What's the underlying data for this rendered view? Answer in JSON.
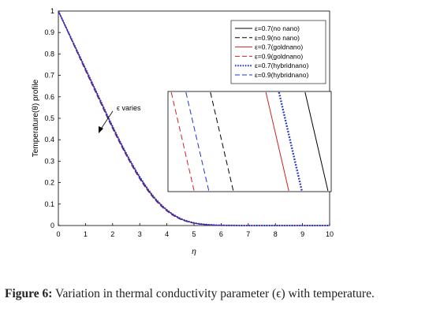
{
  "chart_data": {
    "type": "line",
    "xlabel": "η",
    "ylabel": "Temperature(θ) profile",
    "xlim": [
      0,
      10
    ],
    "ylim": [
      0,
      1
    ],
    "x_ticks": [
      "0",
      "1",
      "2",
      "3",
      "4",
      "5",
      "6",
      "7",
      "8",
      "9",
      "10"
    ],
    "y_ticks": [
      "0",
      "0.1",
      "0.2",
      "0.3",
      "0.4",
      "0.5",
      "0.6",
      "0.7",
      "0.8",
      "0.9",
      "1"
    ],
    "grid": false,
    "legend_position": "top-right",
    "x": [
      0,
      0.5,
      1,
      1.5,
      2,
      2.5,
      3,
      3.5,
      4,
      4.5,
      5,
      5.5,
      6,
      6.5,
      7,
      7.5,
      8,
      8.5,
      9,
      9.5,
      10
    ],
    "series": [
      {
        "name": "ε=0.7(no nano)",
        "color": "#000000",
        "dash": "solid",
        "values": [
          1,
          0.865,
          0.73,
          0.595,
          0.46,
          0.335,
          0.225,
          0.135,
          0.072,
          0.032,
          0.012,
          0.004,
          0.001,
          0.0003,
          0,
          0,
          0,
          0,
          0,
          0,
          0
        ]
      },
      {
        "name": "ε=0.9(no nano)",
        "color": "#000000",
        "dash": "dashed",
        "values": [
          1,
          0.862,
          0.725,
          0.59,
          0.455,
          0.33,
          0.22,
          0.131,
          0.069,
          0.03,
          0.011,
          0.0035,
          0.0009,
          0.0002,
          0,
          0,
          0,
          0,
          0,
          0,
          0
        ]
      },
      {
        "name": "ε=0.7(goldnano)",
        "color": "#cc2222",
        "dash": "solid",
        "values": [
          1,
          0.864,
          0.728,
          0.593,
          0.458,
          0.333,
          0.223,
          0.133,
          0.071,
          0.031,
          0.0115,
          0.0038,
          0.001,
          0.0003,
          0,
          0,
          0,
          0,
          0,
          0,
          0
        ]
      },
      {
        "name": "ε=0.9(goldnano)",
        "color": "#cc2222",
        "dash": "dashed",
        "values": [
          1,
          0.86,
          0.722,
          0.586,
          0.451,
          0.327,
          0.217,
          0.129,
          0.067,
          0.029,
          0.0105,
          0.0033,
          0.0008,
          0.0002,
          0,
          0,
          0,
          0,
          0,
          0,
          0
        ]
      },
      {
        "name": "ε=0.7(hybridnano)",
        "color": "#2233cc",
        "dash": "dotted",
        "values": [
          1,
          0.866,
          0.732,
          0.597,
          0.462,
          0.337,
          0.227,
          0.137,
          0.073,
          0.033,
          0.0125,
          0.0042,
          0.0011,
          0.0003,
          0,
          0,
          0,
          0,
          0,
          0,
          0
        ]
      },
      {
        "name": "ε=0.9(hybridnano)",
        "color": "#2233cc",
        "dash": "dashed",
        "values": [
          1,
          0.861,
          0.723,
          0.588,
          0.453,
          0.329,
          0.219,
          0.13,
          0.068,
          0.0295,
          0.0108,
          0.0034,
          0.0009,
          0.0002,
          0,
          0,
          0,
          0,
          0,
          0,
          0
        ]
      }
    ],
    "annotation": "ϵ varies",
    "inset": {
      "order": [
        "ε=0.9(goldnano)",
        "ε=0.9(hybridnano)",
        "ε=0.9(no nano)",
        "ε=0.7(goldnano)",
        "ε=0.7(hybridnano)",
        "ε=0.7(no nano)"
      ]
    }
  },
  "caption": {
    "label": "Figure 6:",
    "text": " Variation in thermal conductivity parameter (ϵ) with temperature."
  }
}
